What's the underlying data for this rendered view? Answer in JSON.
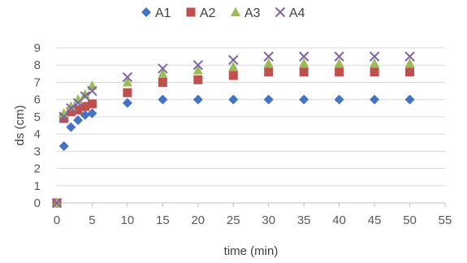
{
  "chart_data": {
    "type": "scatter",
    "xlabel": "time (min)",
    "ylabel": "ds (cm)",
    "xlim": [
      0,
      55
    ],
    "ylim": [
      0,
      9
    ],
    "xticks": [
      0,
      5,
      10,
      15,
      20,
      25,
      30,
      35,
      40,
      45,
      50,
      55
    ],
    "yticks": [
      0,
      1,
      2,
      3,
      4,
      5,
      6,
      7,
      8,
      9
    ],
    "grid": "horizontal",
    "legend_position": "top",
    "series": [
      {
        "name": "A1",
        "marker": "diamond",
        "color": "#4472c4",
        "x": [
          0,
          1,
          2,
          3,
          4,
          5,
          10,
          15,
          20,
          25,
          30,
          35,
          40,
          45,
          50
        ],
        "y": [
          0,
          3.3,
          4.4,
          4.8,
          5.1,
          5.2,
          5.8,
          6.0,
          6.0,
          6.0,
          6.0,
          6.0,
          6.0,
          6.0,
          6.0
        ]
      },
      {
        "name": "A2",
        "marker": "square",
        "color": "#c0504d",
        "x": [
          0,
          1,
          2,
          3,
          4,
          5,
          10,
          15,
          20,
          25,
          30,
          35,
          40,
          45,
          50
        ],
        "y": [
          0,
          4.9,
          5.3,
          5.4,
          5.6,
          5.75,
          6.4,
          7.0,
          7.15,
          7.4,
          7.6,
          7.6,
          7.6,
          7.6,
          7.6
        ]
      },
      {
        "name": "A3",
        "marker": "triangle",
        "color": "#9bbb59",
        "x": [
          0,
          1,
          2,
          3,
          4,
          5,
          10,
          15,
          20,
          25,
          30,
          35,
          40,
          45,
          50
        ],
        "y": [
          0,
          5.2,
          5.6,
          6.0,
          6.3,
          6.8,
          7.0,
          7.5,
          7.7,
          7.9,
          8.1,
          8.1,
          8.1,
          8.1,
          8.1
        ]
      },
      {
        "name": "A4",
        "marker": "x",
        "color": "#8064a2",
        "x": [
          0,
          1,
          2,
          3,
          4,
          5,
          10,
          15,
          20,
          25,
          30,
          35,
          40,
          45,
          50
        ],
        "y": [
          0,
          5.0,
          5.5,
          5.8,
          6.2,
          6.5,
          7.3,
          7.8,
          8.0,
          8.3,
          8.5,
          8.5,
          8.5,
          8.5,
          8.5
        ]
      }
    ]
  }
}
